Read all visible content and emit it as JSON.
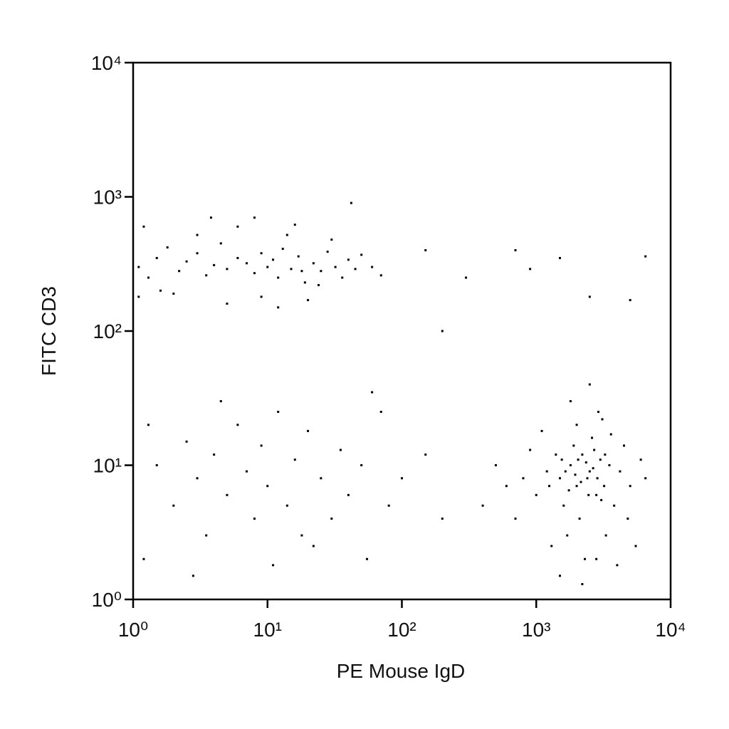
{
  "chart_data": {
    "type": "scatter",
    "x_label": "PE Mouse IgD",
    "y_label": "FITC CD3",
    "xscale": "log",
    "yscale": "log",
    "color": "#000000",
    "xlim": [
      1,
      10000
    ],
    "ylim": [
      1,
      10000
    ],
    "xticks": [
      {
        "value": 1,
        "label": "10⁰"
      },
      {
        "value": 10,
        "label": "10¹"
      },
      {
        "value": 100,
        "label": "10²"
      },
      {
        "value": 1000,
        "label": "10³"
      },
      {
        "value": 10000,
        "label": "10⁴"
      }
    ],
    "yticks": [
      {
        "value": 1,
        "label": "10⁰"
      },
      {
        "value": 10,
        "label": "10¹"
      },
      {
        "value": 100,
        "label": "10²"
      },
      {
        "value": 1000,
        "label": "10³"
      },
      {
        "value": 10000,
        "label": "10⁴"
      }
    ],
    "x": [
      1.1,
      1.3,
      1.5,
      1.8,
      2.2,
      2.5,
      3,
      3.5,
      4,
      4.5,
      5,
      6,
      7,
      8,
      9,
      10,
      11,
      12,
      13,
      15,
      17,
      19,
      22,
      25,
      28,
      32,
      36,
      40,
      45,
      50,
      2,
      3,
      6,
      9,
      14,
      20,
      30,
      1.2,
      1.6,
      8,
      12,
      24,
      60,
      70,
      5,
      16,
      42,
      1.1,
      3.8,
      18,
      1.5,
      2,
      2.5,
      3,
      3.5,
      4,
      5,
      6,
      7,
      8,
      9,
      10,
      12,
      14,
      16,
      18,
      20,
      25,
      30,
      35,
      40,
      50,
      60,
      70,
      1.2,
      1.3,
      2.8,
      4.5,
      11,
      22,
      55,
      80,
      100,
      150,
      200,
      1500,
      1800,
      2000,
      2200,
      2500,
      2800,
      3000,
      1600,
      1900,
      2100,
      2400,
      2700,
      3200,
      3500,
      1200,
      1000,
      800,
      1400,
      1700,
      2300,
      2600,
      3800,
      4200,
      4500,
      5000,
      6000,
      700,
      900,
      1100,
      1300,
      2000,
      2900,
      3300,
      4000,
      1500,
      2200,
      2800,
      600,
      500,
      400,
      1800,
      2500,
      3100,
      3600,
      4800,
      5500,
      6500,
      1250,
      1650,
      2050,
      2450,
      2850,
      3250,
      1950,
      2150,
      2350,
      1750,
      2650,
      3050,
      1550,
      700,
      1500,
      2500,
      5000,
      6500,
      900,
      150,
      200,
      300
    ],
    "values": [
      300,
      250,
      350,
      420,
      280,
      330,
      380,
      260,
      310,
      450,
      290,
      350,
      320,
      270,
      380,
      300,
      340,
      250,
      410,
      290,
      360,
      230,
      320,
      280,
      390,
      300,
      250,
      340,
      290,
      370,
      190,
      520,
      600,
      180,
      520,
      170,
      480,
      600,
      200,
      700,
      150,
      220,
      300,
      260,
      160,
      620,
      900,
      180,
      700,
      280,
      10,
      5,
      15,
      8,
      3,
      12,
      6,
      20,
      9,
      4,
      14,
      7,
      25,
      5,
      11,
      3,
      18,
      8,
      4,
      13,
      6,
      10,
      35,
      25,
      2,
      20,
      1.5,
      30,
      1.8,
      2.5,
      2,
      5,
      8,
      12,
      4,
      8,
      10,
      7,
      12,
      9,
      6,
      11,
      5,
      14,
      4,
      8,
      13,
      7,
      10,
      9,
      6,
      8,
      12,
      3,
      2,
      16,
      5,
      9,
      14,
      7,
      11,
      4,
      13,
      18,
      2.5,
      20,
      25,
      3,
      1.8,
      1.5,
      1.3,
      2,
      7,
      10,
      5,
      30,
      40,
      22,
      17,
      4,
      2.5,
      8,
      7,
      9,
      11,
      6,
      8,
      12,
      8.5,
      7.5,
      10.5,
      6.5,
      9.5,
      5.5,
      11,
      400,
      350,
      180,
      170,
      360,
      290,
      400,
      100,
      250
    ]
  }
}
